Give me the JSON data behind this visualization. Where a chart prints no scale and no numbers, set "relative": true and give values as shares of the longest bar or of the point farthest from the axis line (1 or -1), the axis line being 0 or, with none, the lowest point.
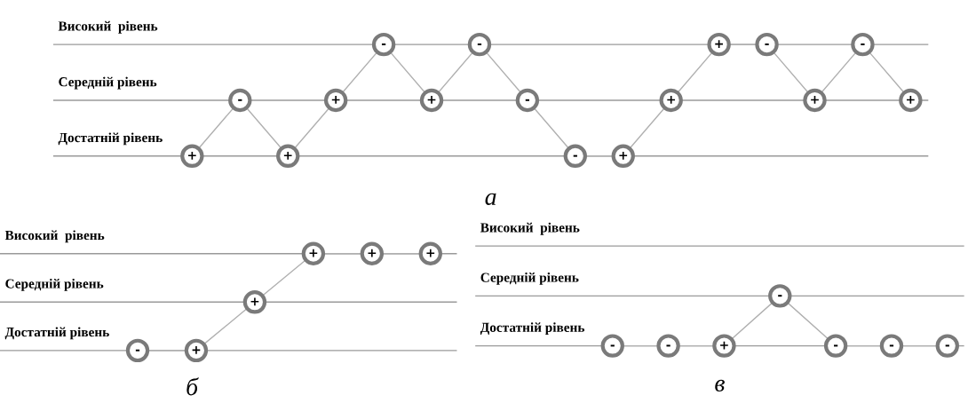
{
  "chart_data": [
    {
      "type": "line",
      "title": "а",
      "categories": [
        null,
        null,
        null,
        null,
        null,
        null,
        null,
        null,
        null,
        null,
        null,
        null,
        null,
        null,
        null,
        null
      ],
      "relative": true,
      "series": [
        {
          "color": "#b0b0b0",
          "values": [
            0,
            0.5,
            0,
            0.5,
            1,
            0.5,
            1,
            0.5,
            0,
            0,
            0.5,
            1,
            1,
            0.5,
            1,
            0.5
          ]
        }
      ],
      "annotations": [
        {
          "text": "+",
          "y": 0
        },
        {
          "text": "-",
          "y": 0.5
        },
        {
          "text": "+",
          "y": 0
        },
        {
          "text": "+",
          "y": 0.5
        },
        {
          "text": "-",
          "y": 1
        },
        {
          "text": "+",
          "y": 0.5
        },
        {
          "text": "-",
          "y": 1
        },
        {
          "text": "-",
          "y": 0.5
        },
        {
          "text": "-",
          "y": 0
        },
        {
          "text": "+",
          "y": 0
        },
        {
          "text": "+",
          "y": 0.5
        },
        {
          "text": "+",
          "y": 1
        },
        {
          "text": "-",
          "y": 1
        },
        {
          "text": "+",
          "y": 0.5
        },
        {
          "text": "-",
          "y": 1
        },
        {
          "text": "+",
          "y": 0.5
        }
      ],
      "ref_lines": [
        {
          "axis": "y",
          "value": 0,
          "label": "Достатній рівень",
          "color": "#9a9a9a"
        },
        {
          "axis": "y",
          "value": 0.5,
          "label": "Середній рівень",
          "color": "#9a9a9a"
        },
        {
          "axis": "y",
          "value": 1,
          "label": "Високий  рівень",
          "color": "#9a9a9a"
        }
      ],
      "marker": "circle",
      "line_style": "solid"
    },
    {
      "type": "line",
      "title": "б",
      "categories": [
        null,
        null,
        null,
        null,
        null,
        null
      ],
      "relative": true,
      "series": [
        {
          "color": "#b0b0b0",
          "values": [
            0,
            0,
            0.5,
            1,
            1,
            1
          ]
        }
      ],
      "annotations": [
        {
          "text": "-",
          "y": 0
        },
        {
          "text": "+",
          "y": 0
        },
        {
          "text": "+",
          "y": 0.5
        },
        {
          "text": "+",
          "y": 1
        },
        {
          "text": "+",
          "y": 1
        },
        {
          "text": "+",
          "y": 1
        }
      ],
      "ref_lines": [
        {
          "axis": "y",
          "value": 0,
          "label": "Достатній рівень",
          "color": "#9a9a9a"
        },
        {
          "axis": "y",
          "value": 0.5,
          "label": "Середній рівень",
          "color": "#9a9a9a"
        },
        {
          "axis": "y",
          "value": 1,
          "label": "Високий  рівень",
          "color": "#9a9a9a"
        }
      ],
      "marker": "circle",
      "line_style": "solid"
    },
    {
      "type": "line",
      "title": "в",
      "categories": [
        null,
        null,
        null,
        null,
        null,
        null,
        null
      ],
      "relative": true,
      "series": [
        {
          "color": "#b0b0b0",
          "values": [
            0,
            0,
            0,
            1,
            0,
            0,
            0
          ]
        }
      ],
      "annotations": [
        {
          "text": "-",
          "y": 0
        },
        {
          "text": "-",
          "y": 0
        },
        {
          "text": "+",
          "y": 0
        },
        {
          "text": "-",
          "y": 1
        },
        {
          "text": "-",
          "y": 0
        },
        {
          "text": "-",
          "y": 0
        },
        {
          "text": "-",
          "y": 0
        }
      ],
      "ref_lines": [
        {
          "axis": "y",
          "value": 0,
          "label": "Достатній рівень",
          "color": "#9a9a9a"
        },
        {
          "axis": "y",
          "value": 1,
          "label": "Середній рівень",
          "color": "#9a9a9a"
        },
        {
          "axis": "y",
          "value": 2,
          "label": "Високий  рівень",
          "color": "#9a9a9a"
        }
      ],
      "marker": "circle",
      "line_style": "solid"
    }
  ]
}
